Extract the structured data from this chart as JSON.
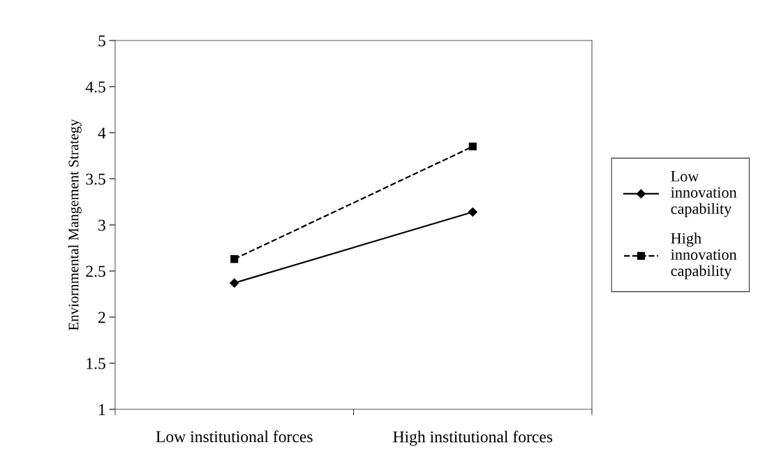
{
  "chart_data": {
    "type": "line",
    "ylabel": "Enviornmental Mangement Strategy",
    "categories": [
      "Low institutional forces",
      "High institutional forces"
    ],
    "series": [
      {
        "name": "Low innovation capability",
        "color": "#000000",
        "values": [
          2.37,
          3.14
        ],
        "marker": "diamond",
        "line_style": "solid"
      },
      {
        "name": "High innovation capability",
        "color": "#000000",
        "values": [
          2.63,
          3.85
        ],
        "marker": "square",
        "line_style": "dashed"
      }
    ],
    "ylim": [
      1,
      5
    ],
    "yticks": [
      1,
      1.5,
      2,
      2.5,
      3,
      3.5,
      4,
      4.5,
      5
    ],
    "grid": false,
    "legend": "right"
  }
}
